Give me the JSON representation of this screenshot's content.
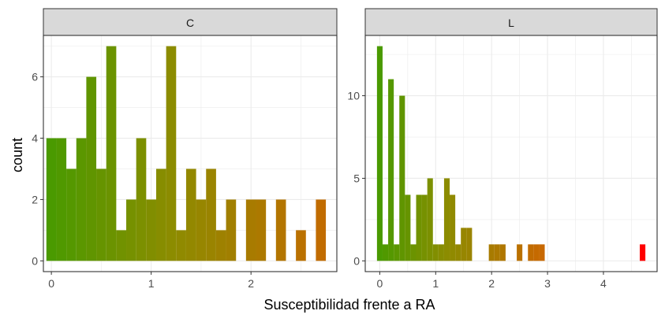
{
  "chart_data": {
    "type": "bar",
    "subtype": "faceted-histogram",
    "xlabel": "Susceptibilidad frente a RA",
    "ylabel": "count",
    "bar_color_gradient": [
      "#4a9a00",
      "#8c8c00",
      "#cc6600",
      "#ff0000"
    ],
    "facets": [
      {
        "label": "C",
        "xlim": [
          -0.08,
          2.86
        ],
        "ylim": [
          -0.35,
          7.35
        ],
        "x_ticks": [
          0,
          1,
          2
        ],
        "y_ticks": [
          0,
          2,
          4,
          6
        ],
        "bin_width": 0.1,
        "bins": [
          {
            "x0": -0.05,
            "count": 4
          },
          {
            "x0": 0.05,
            "count": 4
          },
          {
            "x0": 0.15,
            "count": 3
          },
          {
            "x0": 0.25,
            "count": 4
          },
          {
            "x0": 0.35,
            "count": 6
          },
          {
            "x0": 0.45,
            "count": 3
          },
          {
            "x0": 0.55,
            "count": 7
          },
          {
            "x0": 0.65,
            "count": 1
          },
          {
            "x0": 0.75,
            "count": 2
          },
          {
            "x0": 0.85,
            "count": 4
          },
          {
            "x0": 0.95,
            "count": 2
          },
          {
            "x0": 1.05,
            "count": 3
          },
          {
            "x0": 1.15,
            "count": 7
          },
          {
            "x0": 1.25,
            "count": 1
          },
          {
            "x0": 1.35,
            "count": 3
          },
          {
            "x0": 1.45,
            "count": 2
          },
          {
            "x0": 1.55,
            "count": 3
          },
          {
            "x0": 1.65,
            "count": 1
          },
          {
            "x0": 1.75,
            "count": 2
          },
          {
            "x0": 1.95,
            "count": 2
          },
          {
            "x0": 2.05,
            "count": 2
          },
          {
            "x0": 2.25,
            "count": 2
          },
          {
            "x0": 2.45,
            "count": 1
          },
          {
            "x0": 2.65,
            "count": 2
          }
        ]
      },
      {
        "label": "L",
        "xlim": [
          -0.26,
          4.96
        ],
        "ylim": [
          -0.65,
          13.65
        ],
        "x_ticks": [
          0,
          1,
          2,
          3,
          4
        ],
        "y_ticks": [
          0,
          5,
          10
        ],
        "bin_width": 0.1,
        "bins": [
          {
            "x0": -0.05,
            "count": 13
          },
          {
            "x0": 0.05,
            "count": 1
          },
          {
            "x0": 0.15,
            "count": 11
          },
          {
            "x0": 0.25,
            "count": 1
          },
          {
            "x0": 0.35,
            "count": 10
          },
          {
            "x0": 0.45,
            "count": 4
          },
          {
            "x0": 0.55,
            "count": 1
          },
          {
            "x0": 0.65,
            "count": 4
          },
          {
            "x0": 0.75,
            "count": 4
          },
          {
            "x0": 0.85,
            "count": 5
          },
          {
            "x0": 0.95,
            "count": 1
          },
          {
            "x0": 1.05,
            "count": 1
          },
          {
            "x0": 1.15,
            "count": 5
          },
          {
            "x0": 1.25,
            "count": 4
          },
          {
            "x0": 1.35,
            "count": 1
          },
          {
            "x0": 1.45,
            "count": 2
          },
          {
            "x0": 1.55,
            "count": 2
          },
          {
            "x0": 1.95,
            "count": 1
          },
          {
            "x0": 2.05,
            "count": 1
          },
          {
            "x0": 2.15,
            "count": 1
          },
          {
            "x0": 2.45,
            "count": 1
          },
          {
            "x0": 2.65,
            "count": 1
          },
          {
            "x0": 2.75,
            "count": 1
          },
          {
            "x0": 2.85,
            "count": 1
          },
          {
            "x0": 4.65,
            "count": 1
          }
        ]
      }
    ],
    "grid": true,
    "legend": "none"
  }
}
